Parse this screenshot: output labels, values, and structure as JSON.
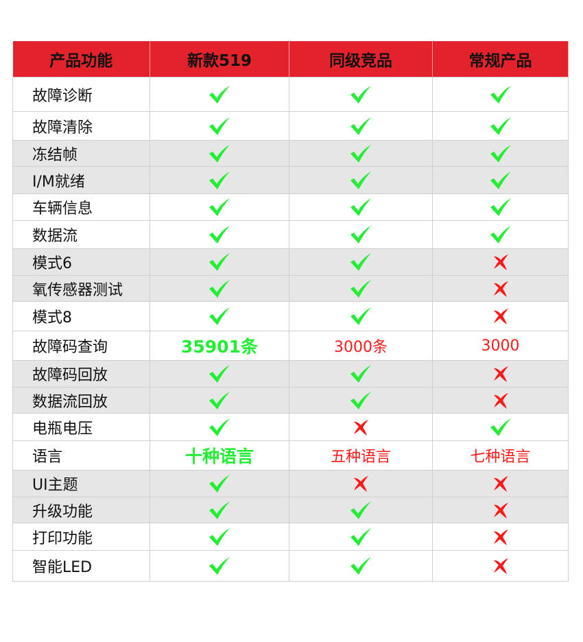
{
  "colors": {
    "header_bg": "#e3222c",
    "check": "#22ee33",
    "cross": "#ff1a1a",
    "highlight_green": "#22ee33",
    "highlight_red": "#ff1a1a",
    "gray_row": "#e6e6e6"
  },
  "header": [
    "产品功能",
    "新款519",
    "同级竞品",
    "常规产品"
  ],
  "rows": [
    {
      "label": "故障诊断",
      "cells": [
        {
          "type": "check"
        },
        {
          "type": "check"
        },
        {
          "type": "check"
        }
      ],
      "gray": false
    },
    {
      "label": "故障清除",
      "cells": [
        {
          "type": "check"
        },
        {
          "type": "check"
        },
        {
          "type": "check"
        }
      ],
      "gray": false
    },
    {
      "label": "冻结帧",
      "cells": [
        {
          "type": "check"
        },
        {
          "type": "check"
        },
        {
          "type": "check"
        }
      ],
      "gray": true
    },
    {
      "label": "I/M就绪",
      "cells": [
        {
          "type": "check"
        },
        {
          "type": "check"
        },
        {
          "type": "check"
        }
      ],
      "gray": true
    },
    {
      "label": "车辆信息",
      "cells": [
        {
          "type": "check"
        },
        {
          "type": "check"
        },
        {
          "type": "check"
        }
      ],
      "gray": false
    },
    {
      "label": "数据流",
      "cells": [
        {
          "type": "check"
        },
        {
          "type": "check"
        },
        {
          "type": "check"
        }
      ],
      "gray": false
    },
    {
      "label": "模式6",
      "cells": [
        {
          "type": "check"
        },
        {
          "type": "check"
        },
        {
          "type": "cross"
        }
      ],
      "gray": true
    },
    {
      "label": "氧传感器测试",
      "cells": [
        {
          "type": "check"
        },
        {
          "type": "check"
        },
        {
          "type": "cross"
        }
      ],
      "gray": true
    },
    {
      "label": "模式8",
      "cells": [
        {
          "type": "check"
        },
        {
          "type": "check"
        },
        {
          "type": "cross"
        }
      ],
      "gray": false
    },
    {
      "label": "故障码查询",
      "cells": [
        {
          "type": "text",
          "text": "35901条",
          "style": "green"
        },
        {
          "type": "text",
          "text": "3000条",
          "style": "red"
        },
        {
          "type": "text",
          "text": "3000",
          "style": "red"
        }
      ],
      "gray": false
    },
    {
      "label": "故障码回放",
      "cells": [
        {
          "type": "check"
        },
        {
          "type": "check"
        },
        {
          "type": "cross"
        }
      ],
      "gray": true
    },
    {
      "label": "数据流回放",
      "cells": [
        {
          "type": "check"
        },
        {
          "type": "check"
        },
        {
          "type": "cross"
        }
      ],
      "gray": true
    },
    {
      "label": "电瓶电压",
      "cells": [
        {
          "type": "check"
        },
        {
          "type": "cross"
        },
        {
          "type": "check"
        }
      ],
      "gray": false
    },
    {
      "label": "语言",
      "cells": [
        {
          "type": "text",
          "text": "十种语言",
          "style": "green"
        },
        {
          "type": "text",
          "text": "五种语言",
          "style": "red"
        },
        {
          "type": "text",
          "text": "七种语言",
          "style": "red"
        }
      ],
      "gray": false
    },
    {
      "label": "UI主题",
      "cells": [
        {
          "type": "check"
        },
        {
          "type": "cross"
        },
        {
          "type": "cross"
        }
      ],
      "gray": true
    },
    {
      "label": "升级功能",
      "cells": [
        {
          "type": "check"
        },
        {
          "type": "check"
        },
        {
          "type": "cross"
        }
      ],
      "gray": true
    },
    {
      "label": "打印功能",
      "cells": [
        {
          "type": "check"
        },
        {
          "type": "check"
        },
        {
          "type": "cross"
        }
      ],
      "gray": false
    },
    {
      "label": "智能LED",
      "cells": [
        {
          "type": "check"
        },
        {
          "type": "check"
        },
        {
          "type": "cross"
        }
      ],
      "gray": false
    }
  ]
}
